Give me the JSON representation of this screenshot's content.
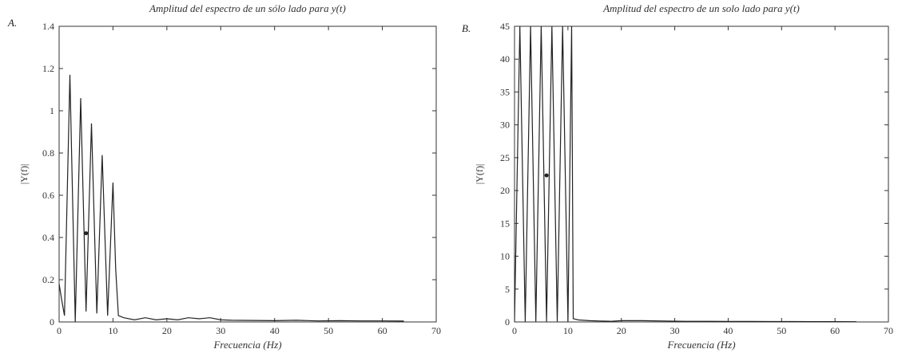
{
  "chart_data": [
    {
      "panel_label": "A.",
      "type": "line",
      "title": "Amplitud del espectro de un sólo lado para y(t)",
      "xlabel": "Frecuencia (Hz)",
      "ylabel": "|Y(f)|",
      "xlim": [
        0,
        70
      ],
      "ylim": [
        0,
        1.4
      ],
      "xticks": [
        0,
        10,
        20,
        30,
        40,
        50,
        60,
        70
      ],
      "xtick_labels": [
        "0",
        "10",
        "20",
        "30",
        "40",
        "50",
        "60",
        "70"
      ],
      "yticks": [
        0,
        0.2,
        0.4,
        0.6,
        0.8,
        1,
        1.2,
        1.4
      ],
      "ytick_labels": [
        "0",
        "0.2",
        "0.4",
        "0.6",
        "0.8",
        "1",
        "1.2",
        "1.4"
      ],
      "grid": false,
      "series": [
        {
          "x": [
            0,
            0.5,
            1,
            2,
            3,
            4,
            5,
            6,
            7,
            8,
            9,
            10,
            10.5,
            11,
            12,
            14,
            16,
            18,
            20,
            22,
            24,
            26,
            28,
            30,
            32,
            36,
            40,
            44,
            48,
            52,
            56,
            60,
            64
          ],
          "y": [
            0.18,
            0.1,
            0.03,
            1.17,
            0.0,
            1.06,
            0.05,
            0.94,
            0.04,
            0.79,
            0.03,
            0.66,
            0.25,
            0.03,
            0.02,
            0.01,
            0.02,
            0.01,
            0.015,
            0.01,
            0.02,
            0.015,
            0.02,
            0.01,
            0.008,
            0.007,
            0.006,
            0.008,
            0.005,
            0.006,
            0.005,
            0.005,
            0.004
          ]
        }
      ],
      "marker": {
        "x": 5,
        "y": 0.42
      }
    },
    {
      "panel_label": "B.",
      "type": "line",
      "title": "Amplitud del espectro de un solo lado para y(t)",
      "xlabel": "Frecuencia (Hz)",
      "ylabel": "|Y(f)|",
      "xlim": [
        0,
        70
      ],
      "ylim": [
        0,
        45
      ],
      "xticks": [
        0,
        10,
        20,
        30,
        40,
        50,
        60,
        70
      ],
      "xtick_labels": [
        "0",
        "10",
        "20",
        "30",
        "40",
        "50",
        "60",
        "70"
      ],
      "yticks": [
        0,
        5,
        10,
        15,
        20,
        25,
        30,
        35,
        40,
        45
      ],
      "ytick_labels": [
        "0",
        "5",
        "10",
        "15",
        "20",
        "25",
        "30",
        "35",
        "40",
        "45"
      ],
      "grid": false,
      "series": [
        {
          "x": [
            0,
            1,
            2,
            3,
            4,
            5,
            6,
            7,
            8,
            9,
            10,
            10.7,
            11,
            12,
            14,
            16,
            18,
            20,
            24,
            28,
            32,
            36,
            40,
            44,
            48,
            52,
            56,
            60,
            64
          ],
          "y": [
            0.05,
            45,
            0.05,
            45,
            0.05,
            45,
            0.05,
            45,
            0.05,
            45,
            0.05,
            45,
            0.5,
            0.3,
            0.2,
            0.15,
            0.1,
            0.2,
            0.2,
            0.15,
            0.1,
            0.1,
            0.08,
            0.08,
            0.06,
            0.06,
            0.05,
            0.05,
            0.04
          ]
        }
      ],
      "marker": {
        "x": 6,
        "y": 22.3
      }
    }
  ]
}
